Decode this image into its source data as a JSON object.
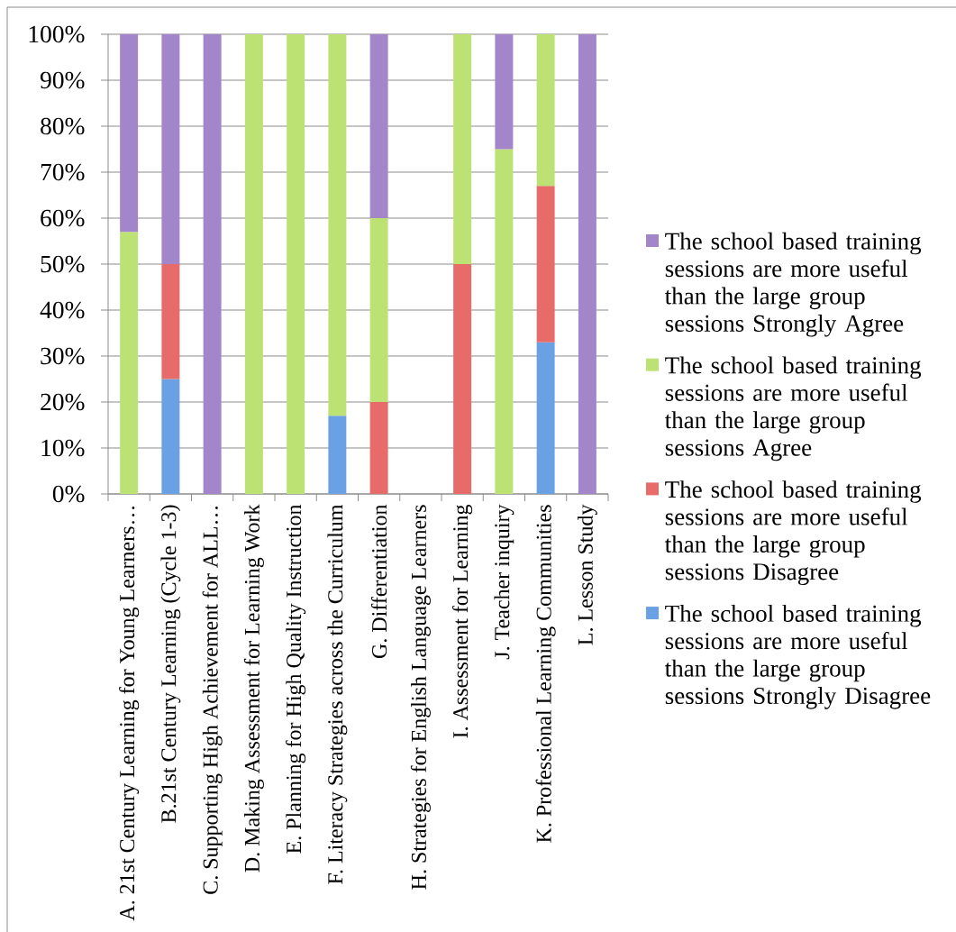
{
  "chart_data": {
    "type": "bar",
    "stacked": true,
    "categories": [
      "A. 21st Century Learning for Young Learners…",
      "B.21st Century Learning (Cycle 1-3)",
      "C. Supporting High Achievement for ALL…",
      "D. Making Assessment for Learning Work",
      "E. Planning for High Quality Instruction",
      "F. Literacy Strategies across the Curriculum",
      "G. Differentiation",
      "H. Strategies for English Language Learners",
      "I. Assessment for Learning",
      "J. Teacher inquiry",
      "K. Professional Learning Communities",
      "L. Lesson Study"
    ],
    "series": [
      {
        "name": "The school based training sessions are more useful than the large group sessions Strongly Disagree",
        "color": "#6aa0e4",
        "values": [
          0,
          25,
          0,
          0,
          0,
          17,
          0,
          0,
          0,
          0,
          33,
          0
        ]
      },
      {
        "name": "The school based training sessions are more useful than the large group sessions Disagree",
        "color": "#e76c69",
        "values": [
          0,
          25,
          0,
          0,
          0,
          0,
          20,
          0,
          50,
          0,
          34,
          0
        ]
      },
      {
        "name": "The school based training sessions are more useful than the large group sessions Agree",
        "color": "#bde274",
        "values": [
          57,
          0,
          0,
          100,
          100,
          83,
          40,
          0,
          50,
          75,
          33,
          0
        ]
      },
      {
        "name": "The school based training sessions are more useful than the large group sessions Strongly Agree",
        "color": "#a286c9",
        "values": [
          43,
          50,
          100,
          0,
          0,
          0,
          40,
          0,
          0,
          25,
          0,
          100
        ]
      }
    ],
    "ylim": [
      0,
      100
    ],
    "yticks": [
      {
        "value": 0,
        "label": "0%"
      },
      {
        "value": 10,
        "label": "10%"
      },
      {
        "value": 20,
        "label": "20%"
      },
      {
        "value": 30,
        "label": "30%"
      },
      {
        "value": 40,
        "label": "40%"
      },
      {
        "value": 50,
        "label": "50%"
      },
      {
        "value": 60,
        "label": "60%"
      },
      {
        "value": 70,
        "label": "70%"
      },
      {
        "value": 80,
        "label": "80%"
      },
      {
        "value": 90,
        "label": "90%"
      },
      {
        "value": 100,
        "label": "100%"
      }
    ],
    "grid": "y",
    "legend": "right"
  }
}
